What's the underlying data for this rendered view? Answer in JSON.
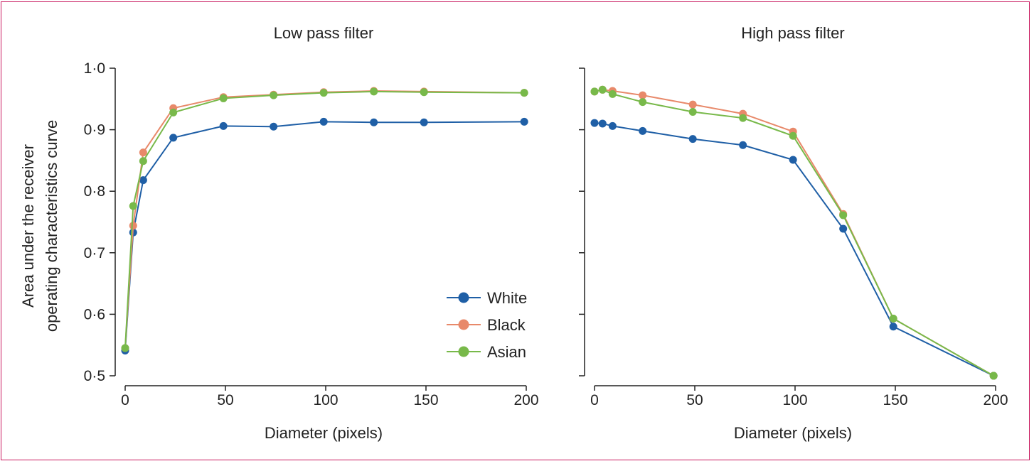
{
  "colors": {
    "frame": "#c8175d",
    "axis": "#222222"
  },
  "chart_data": [
    {
      "type": "line",
      "title": "Low pass filter",
      "xlabel": "Diameter (pixels)",
      "ylabel_line1": "Area under the receiver",
      "ylabel_line2": "operating characteristics curve",
      "xlim": [
        0,
        200
      ],
      "ylim": [
        0.5,
        1.0
      ],
      "xticks": [
        0,
        50,
        100,
        150,
        200
      ],
      "xtick_labels": [
        "0",
        "50",
        "100",
        "150",
        "200"
      ],
      "yticks": [
        0.5,
        0.6,
        0.7,
        0.8,
        0.9,
        1.0
      ],
      "ytick_labels": [
        "0·5",
        "0·6",
        "0·7",
        "0·8",
        "0·9",
        "1·0"
      ],
      "x": [
        0,
        4,
        9,
        24,
        49,
        74,
        99,
        124,
        149,
        199
      ],
      "legend_position": "bottom-right",
      "series": [
        {
          "name": "White",
          "color": "#1f5fa6",
          "values": [
            0.541,
            0.733,
            0.818,
            0.887,
            0.906,
            0.905,
            0.913,
            0.912,
            0.912,
            0.913
          ]
        },
        {
          "name": "Black",
          "color": "#e8896a",
          "values": [
            0.545,
            0.744,
            0.863,
            0.935,
            0.953,
            0.957,
            0.961,
            0.963,
            0.962,
            0.96
          ]
        },
        {
          "name": "Asian",
          "color": "#78b94a",
          "values": [
            0.545,
            0.776,
            0.849,
            0.928,
            0.951,
            0.956,
            0.96,
            0.962,
            0.961,
            0.96
          ]
        }
      ]
    },
    {
      "type": "line",
      "title": "High pass filter",
      "xlabel": "Diameter (pixels)",
      "xlim": [
        0,
        200
      ],
      "ylim": [
        0.5,
        1.0
      ],
      "xticks": [
        0,
        50,
        100,
        150,
        200
      ],
      "xtick_labels": [
        "0",
        "50",
        "100",
        "150",
        "200"
      ],
      "yticks": [
        0.5,
        0.6,
        0.7,
        0.8,
        0.9,
        1.0
      ],
      "x": [
        0,
        4,
        9,
        24,
        49,
        74,
        99,
        124,
        149,
        199
      ],
      "series": [
        {
          "name": "White",
          "color": "#1f5fa6",
          "values": [
            0.911,
            0.91,
            0.906,
            0.898,
            0.885,
            0.875,
            0.851,
            0.739,
            0.58,
            0.5
          ]
        },
        {
          "name": "Black",
          "color": "#e8896a",
          "values": [
            0.962,
            0.965,
            0.963,
            0.956,
            0.941,
            0.926,
            0.897,
            0.763,
            0.593,
            0.5
          ]
        },
        {
          "name": "Asian",
          "color": "#78b94a",
          "values": [
            0.962,
            0.965,
            0.958,
            0.945,
            0.929,
            0.919,
            0.89,
            0.761,
            0.593,
            0.5
          ]
        }
      ]
    }
  ]
}
